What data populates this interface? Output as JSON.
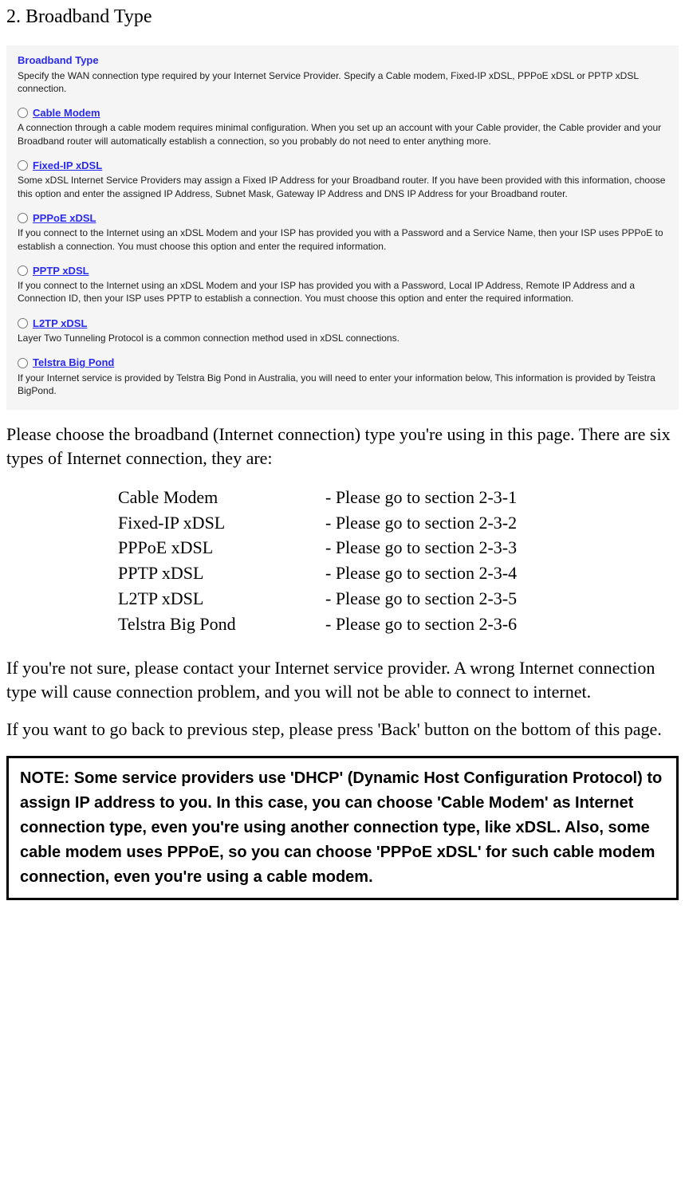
{
  "page_title": "2. Broadband Type",
  "panel": {
    "heading": "Broadband Type",
    "intro": "Specify the WAN connection type required by your Internet Service Provider. Specify a Cable modem, Fixed-IP xDSL, PPPoE xDSL or PPTP xDSL connection.",
    "options": [
      {
        "label": " Cable Modem",
        "desc": "A connection through a cable modem requires minimal configuration. When you set up an account with your Cable provider, the Cable provider and your Broadband router will automatically establish a connection, so you probably do not need to enter anything more."
      },
      {
        "label": " Fixed-IP xDSL",
        "desc": "Some xDSL Internet Service Providers may assign a Fixed IP Address for your Broadband router. If you have been provided with this information, choose this option and enter the assigned IP Address, Subnet Mask, Gateway IP Address and DNS IP Address for your Broadband router."
      },
      {
        "label": " PPPoE xDSL",
        "desc": "If you connect to the Internet using an xDSL Modem and your ISP has provided you with a Password and a Service Name, then your ISP uses PPPoE to establish a connection. You must choose this option and enter the required information."
      },
      {
        "label": " PPTP xDSL",
        "desc": "If you connect to the Internet using an xDSL Modem and your ISP has provided you with a Password, Local IP Address, Remote IP Address and a Connection ID, then your ISP uses PPTP to establish a connection. You must choose this option and enter the required information."
      },
      {
        "label": " L2TP xDSL",
        "desc": "Layer Two Tunneling Protocol is a common connection method used in xDSL connections."
      },
      {
        "label": " Telstra Big Pond",
        "desc": "If your Internet service is provided by Telstra Big Pond in Australia, you will need to enter your information below, This information is provided by Teistra BigPond."
      }
    ]
  },
  "body": {
    "intro": "Please choose the broadband (Internet connection) type you're using in this page. There are six types of Internet connection, they are:",
    "connections": [
      {
        "name": "Cable Modem",
        "ref": "- Please go to section 2-3-1"
      },
      {
        "name": "Fixed-IP xDSL",
        "ref": "- Please go to section 2-3-2"
      },
      {
        "name": "PPPoE xDSL",
        "ref": "- Please go to section 2-3-3"
      },
      {
        "name": "PPTP xDSL",
        "ref": "- Please go to section 2-3-4"
      },
      {
        "name": "L2TP xDSL",
        "ref": "- Please go to section 2-3-5"
      },
      {
        "name": "Telstra Big Pond",
        "ref": "- Please go to section 2-3-6"
      }
    ],
    "warning": "If you're not sure, please contact your Internet service provider. A wrong Internet connection type will cause connection problem, and you will not be able to connect to internet.",
    "back": "If you want to go back to previous step, please press 'Back' button on the bottom of this page."
  },
  "note": "NOTE: Some service providers use 'DHCP' (Dynamic Host Configuration Protocol) to assign IP address to you. In this case, you can choose 'Cable Modem' as Internet connection type, even you're using another connection type, like xDSL. Also, some cable modem uses PPPoE, so you can choose 'PPPoE xDSL' for such cable modem connection, even you're using a cable modem."
}
